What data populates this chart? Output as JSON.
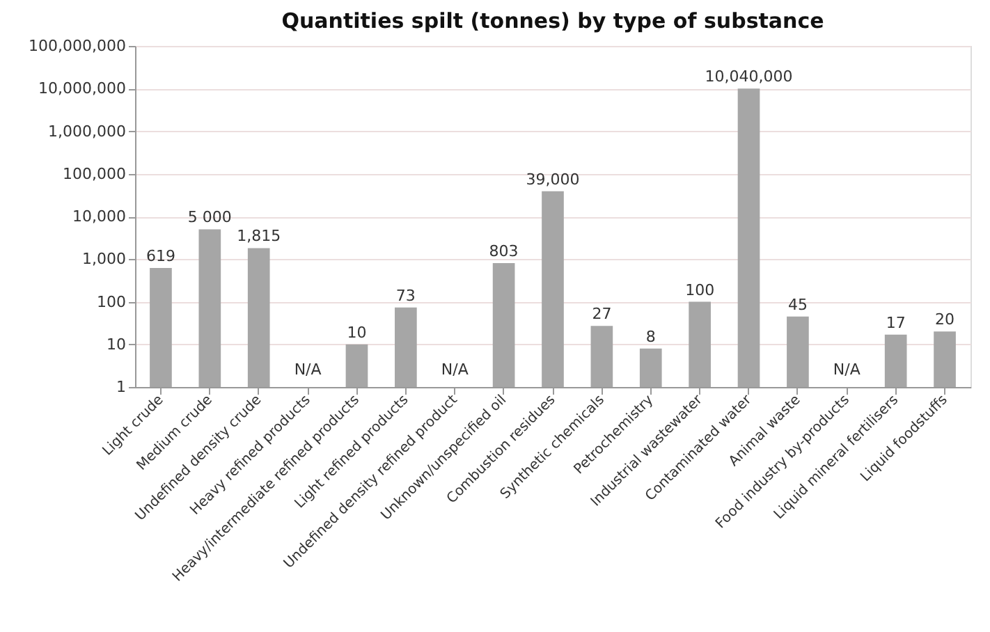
{
  "chart_data": {
    "type": "bar",
    "title": "Quantities spilt (tonnes) by type of substance",
    "categories": [
      "Light crude",
      "Medium crude",
      "Undefined density crude",
      "Heavy refined products",
      "Heavy/intermediate refined products",
      "Light refined products",
      "Undefined density refined product",
      "Unknown/unspecified oil",
      "Combustion residues",
      "Synthetic chemicals",
      "Petrochemistry",
      "Industrial wastewater",
      "Contaminated water",
      "Animal waste",
      "Food industry by-products",
      "Liquid mineral fertilisers",
      "Liquid foodstuffs"
    ],
    "values": [
      619,
      5000,
      1815,
      null,
      10,
      73,
      null,
      803,
      39000,
      27,
      8,
      100,
      10040000,
      45,
      null,
      17,
      20
    ],
    "value_labels": [
      "619",
      "5 000",
      "1,815",
      "N/A",
      "10",
      "73",
      "N/A",
      "803",
      "39,000",
      "27",
      "8",
      "100",
      "10,040,000",
      "45",
      "N/A",
      "17",
      "20"
    ],
    "color": "#a6a6a6",
    "log": true,
    "ylim": [
      1,
      100000000
    ],
    "yticks": [
      1,
      10,
      100,
      {
        "value": 1000,
        "label": "1,000"
      },
      {
        "value": 10000,
        "label": "10,000"
      },
      {
        "value": 100000,
        "label": "100,000"
      },
      {
        "value": 1000000,
        "label": "1,000,000"
      },
      {
        "value": 10000000,
        "label": "10,000,000"
      },
      {
        "value": 100000000,
        "label": "100,000,000"
      }
    ],
    "grid": "y"
  }
}
